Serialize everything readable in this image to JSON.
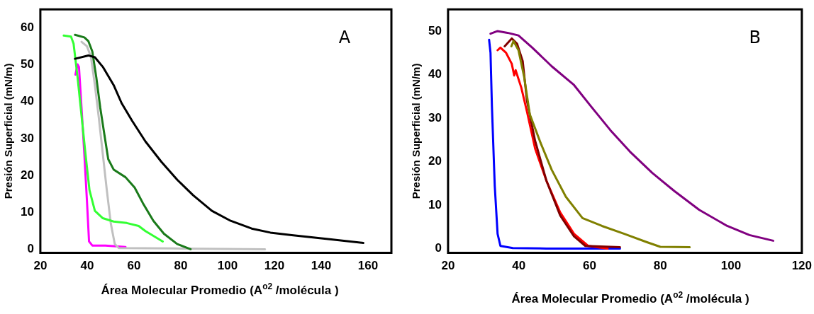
{
  "chart_data": [
    {
      "type": "line",
      "xlabel": "Área Molecular Promedio  (A$^{o2}$ /molécula )",
      "ylabel": "Presión Superficial (mN/m)",
      "annotations": [
        "A"
      ],
      "xlim": [
        20,
        170
      ],
      "xticks": [
        20,
        40,
        60,
        80,
        100,
        120,
        140,
        160
      ],
      "ylim": [
        -1,
        65
      ],
      "yticks": [
        0,
        10,
        20,
        30,
        40,
        50,
        60
      ],
      "grid": false,
      "legend": false,
      "marker": "none",
      "line_style": "solid",
      "series": [
        {
          "color": "#000000",
          "x": [
            34.8,
            40.5,
            43.3,
            46.7,
            51.3,
            54.7,
            59.2,
            64.9,
            71.7,
            78.5,
            85.3,
            93.3,
            101.3,
            110.3,
            118.3,
            127.4,
            142.2,
            158
          ],
          "values": [
            51.6,
            52.5,
            52,
            49.4,
            44.5,
            39.6,
            34.8,
            29.2,
            23.7,
            18.8,
            14.6,
            10.4,
            7.7,
            5.6,
            4.5,
            3.8,
            2.8,
            1.7
          ]
        },
        {
          "color": "#33ff33",
          "x": [
            30,
            33.1,
            34.2,
            35.9,
            37.6,
            39.3,
            41,
            43.3,
            46.7,
            51.3,
            56.9,
            62,
            64.9,
            72.3
          ],
          "values": [
            57.9,
            57.6,
            55.7,
            46.6,
            36.2,
            25.7,
            16,
            10.4,
            8.4,
            7.5,
            7.1,
            6.3,
            4.9,
            2.1
          ]
        },
        {
          "color": "#1a7a1a",
          "x": [
            34.8,
            38.8,
            40.5,
            42.2,
            43.9,
            45.6,
            47.3,
            49,
            51.3,
            56.4,
            60.3,
            63.8,
            68.3,
            72.8,
            78.5,
            84.2
          ],
          "values": [
            58.1,
            57.4,
            56.4,
            53.6,
            46.6,
            38.3,
            31.3,
            24.4,
            21.6,
            19.5,
            16.7,
            12.5,
            7.7,
            4.2,
            1.4,
            0
          ]
        },
        {
          "color": "#c0c0c0",
          "x": [
            37.6,
            39.9,
            41.6,
            43.3,
            45,
            46.7,
            48.4,
            50.1,
            51.8,
            53.5,
            76.3,
            116
          ],
          "values": [
            56.2,
            55,
            52.2,
            44.5,
            35.5,
            25.7,
            16,
            7,
            1.4,
            0.3,
            0.2,
            0
          ]
        },
        {
          "color": "#ff00ff",
          "x": [
            35,
            35.9,
            36.5,
            37.6,
            38.8,
            39.9,
            40.8,
            42.2,
            47.8,
            56.4
          ],
          "values": [
            47.3,
            50.1,
            49.4,
            38.3,
            25.7,
            13.2,
            2.1,
            1,
            1,
            0.6
          ]
        }
      ]
    },
    {
      "type": "line",
      "xlabel": "Área Molecular Promedio  (A$^{o2}$ /molécula )",
      "ylabel": "Presión Superficial (mN/m)",
      "annotations": [
        "B"
      ],
      "xlim": [
        20,
        120
      ],
      "xticks": [
        20,
        40,
        60,
        80,
        100,
        120
      ],
      "ylim": [
        -1,
        55
      ],
      "yticks": [
        0,
        10,
        20,
        30,
        40,
        50
      ],
      "grid": false,
      "legend": false,
      "marker": "none",
      "line_style": "solid",
      "series": [
        {
          "color": "#800080",
          "x": [
            32,
            34,
            36.8,
            39.9,
            43.8,
            49.3,
            55.6,
            60.4,
            65.9,
            71.4,
            77.7,
            84,
            91,
            98.9,
            105.2,
            111.9
          ],
          "values": [
            49.4,
            50,
            49.6,
            49,
            46.2,
            41.9,
            37.6,
            32.7,
            27.2,
            22.3,
            17.4,
            13.2,
            8.9,
            5.2,
            3.1,
            1.8
          ]
        },
        {
          "color": "#808000",
          "x": [
            37.9,
            38.5,
            39.9,
            41.5,
            43.1,
            46.2,
            49.3,
            53.3,
            58,
            63.5,
            69.8,
            76.1,
            80,
            88.3
          ],
          "values": [
            46.5,
            47.7,
            45.6,
            39.5,
            30.9,
            24.2,
            18.1,
            11.9,
            7,
            5.2,
            3.4,
            1.5,
            0.4,
            0.3
          ]
        },
        {
          "color": "#800000",
          "x": [
            36,
            38,
            39.5,
            41.1,
            42.3,
            44.6,
            47.8,
            51.7,
            55.6,
            58.8,
            68.6
          ],
          "values": [
            46.5,
            48.3,
            47.1,
            43.1,
            34,
            24.8,
            15.6,
            7.6,
            2.8,
            0.6,
            0.3
          ]
        },
        {
          "color": "#ff0000",
          "x": [
            34,
            34.8,
            36.4,
            38,
            38.7,
            39.1,
            40.7,
            42.3,
            44.6,
            47.8,
            51.7,
            55.6,
            59.6,
            65.1
          ],
          "values": [
            45.6,
            46.2,
            45,
            42.5,
            39.8,
            41,
            37,
            31.5,
            23,
            15.6,
            8.3,
            3.4,
            0.6,
            0
          ]
        },
        {
          "color": "#0000ff",
          "x": [
            31.6,
            32,
            32.4,
            33.2,
            34,
            34.8,
            38.3,
            47.8,
            68.6
          ],
          "values": [
            48,
            45,
            32.7,
            14.4,
            3.4,
            0.6,
            0.1,
            0,
            0
          ]
        }
      ]
    }
  ]
}
